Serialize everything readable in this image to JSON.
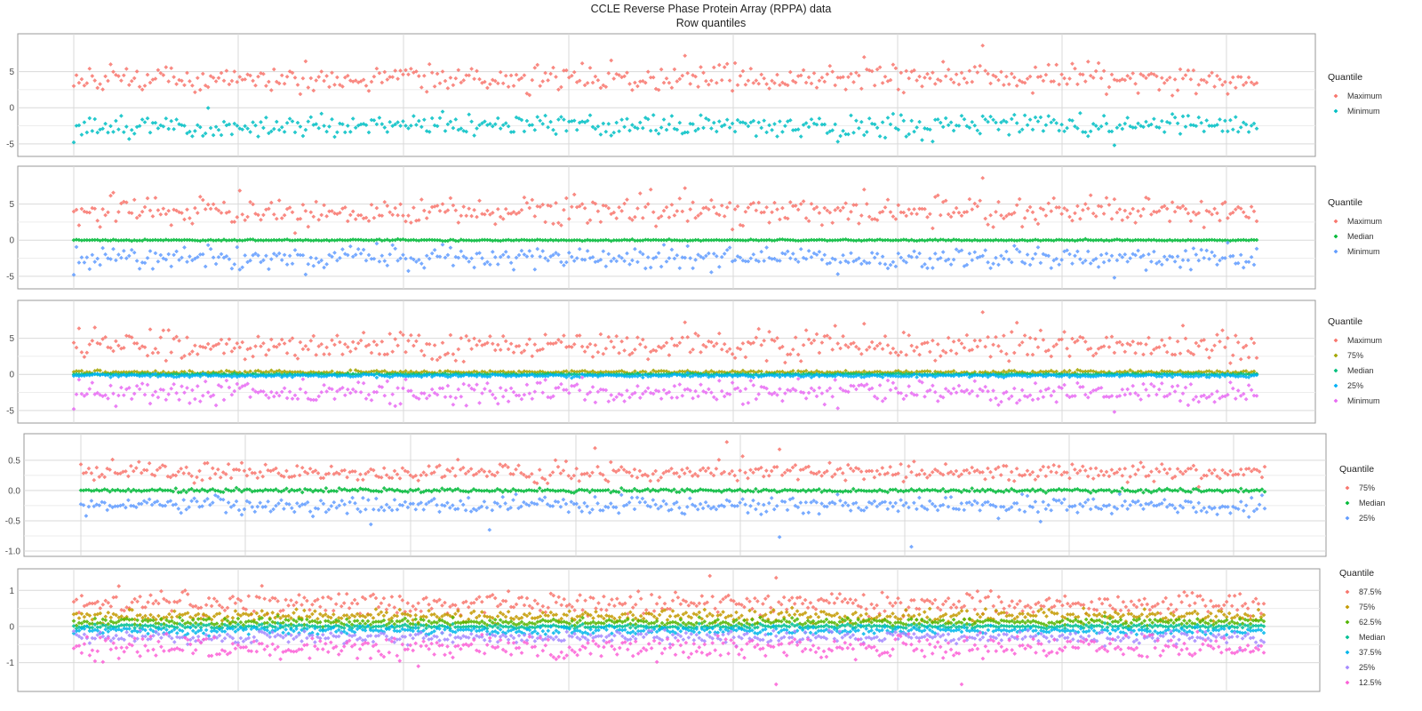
{
  "title": "CCLE Reverse Phase Protein Array (RPPA) data",
  "subtitle": "Row quantiles",
  "chart_data": [
    {
      "type": "scatter",
      "legend_title": "Quantile",
      "legend_position": "right",
      "grid": true,
      "ylim": [
        -6,
        9.5
      ],
      "yticks": [
        -5,
        0,
        5
      ],
      "ytick_labels": [
        "-5",
        "0",
        "5"
      ],
      "n_points": 450,
      "series": [
        {
          "name": "Maximum",
          "color": "#F8766D",
          "center": 4.0,
          "spread": 1.0,
          "outliers": [
            [
              345,
              8.6
            ],
            [
              232,
              7.2
            ],
            [
              300,
              7.0
            ]
          ]
        },
        {
          "name": "Minimum",
          "color": "#00BFC4",
          "center": -2.5,
          "spread": 0.75,
          "outliers": [
            [
              0,
              -4.8
            ],
            [
              395,
              -5.2
            ],
            [
              290,
              -4.7
            ]
          ]
        }
      ]
    },
    {
      "type": "scatter",
      "legend_title": "Quantile",
      "legend_position": "right",
      "grid": true,
      "ylim": [
        -6,
        9.5
      ],
      "yticks": [
        -5,
        0,
        5
      ],
      "ytick_labels": [
        "-5",
        "0",
        "5"
      ],
      "n_points": 450,
      "series": [
        {
          "name": "Maximum",
          "color": "#F8766D",
          "center": 4.0,
          "spread": 1.0,
          "outliers": [
            [
              345,
              8.6
            ],
            [
              232,
              7.2
            ],
            [
              300,
              7.0
            ]
          ]
        },
        {
          "name": "Median",
          "color": "#00BA38",
          "center": 0.0,
          "spread": 0.05,
          "outliers": []
        },
        {
          "name": "Minimum",
          "color": "#619CFF",
          "center": -2.5,
          "spread": 0.75,
          "outliers": [
            [
              0,
              -4.8
            ],
            [
              395,
              -5.2
            ],
            [
              290,
              -4.7
            ]
          ]
        }
      ]
    },
    {
      "type": "scatter",
      "legend_title": "Quantile",
      "legend_position": "right",
      "grid": true,
      "ylim": [
        -6,
        9.5
      ],
      "yticks": [
        -5,
        0,
        5
      ],
      "ytick_labels": [
        "-5",
        "0",
        "5"
      ],
      "n_points": 450,
      "series": [
        {
          "name": "Maximum",
          "color": "#F8766D",
          "center": 4.0,
          "spread": 1.0,
          "outliers": [
            [
              345,
              8.6
            ],
            [
              232,
              7.2
            ],
            [
              300,
              7.0
            ]
          ]
        },
        {
          "name": "75%",
          "color": "#A3A500",
          "center": 0.3,
          "spread": 0.12,
          "outliers": []
        },
        {
          "name": "Median",
          "color": "#00BF7D",
          "center": 0.0,
          "spread": 0.05,
          "outliers": []
        },
        {
          "name": "25%",
          "color": "#00B0F6",
          "center": -0.2,
          "spread": 0.1,
          "outliers": []
        },
        {
          "name": "Minimum",
          "color": "#E76BF3",
          "center": -2.5,
          "spread": 0.75,
          "outliers": [
            [
              0,
              -4.8
            ],
            [
              395,
              -5.2
            ],
            [
              290,
              -4.7
            ]
          ]
        }
      ]
    },
    {
      "type": "scatter",
      "legend_title": "Quantile",
      "legend_position": "right",
      "grid": true,
      "ylim": [
        -1.0,
        0.85
      ],
      "yticks": [
        -1.0,
        -0.5,
        0.0,
        0.5
      ],
      "ytick_labels": [
        "-1.0",
        "-0.5",
        "0.0",
        "0.5"
      ],
      "n_points": 450,
      "series": [
        {
          "name": "75%",
          "color": "#F8766D",
          "center": 0.3,
          "spread": 0.07,
          "outliers": [
            [
              245,
              0.8
            ],
            [
              265,
              0.68
            ],
            [
              195,
              0.7
            ]
          ]
        },
        {
          "name": "Median",
          "color": "#00BA38",
          "center": 0.0,
          "spread": 0.015,
          "outliers": []
        },
        {
          "name": "25%",
          "color": "#619CFF",
          "center": -0.25,
          "spread": 0.07,
          "outliers": [
            [
              315,
              -0.93
            ],
            [
              265,
              -0.77
            ],
            [
              155,
              -0.65
            ],
            [
              110,
              -0.56
            ]
          ]
        }
      ]
    },
    {
      "type": "scatter",
      "legend_title": "Quantile",
      "legend_position": "right",
      "grid": true,
      "ylim": [
        -1.65,
        1.45
      ],
      "yticks": [
        -1,
        0,
        1
      ],
      "ytick_labels": [
        "-1",
        "0",
        "1"
      ],
      "n_points": 450,
      "series": [
        {
          "name": "87.5%",
          "color": "#F8766D",
          "center": 0.65,
          "spread": 0.15,
          "outliers": [
            [
              240,
              1.4
            ],
            [
              265,
              1.35
            ]
          ]
        },
        {
          "name": "75%",
          "color": "#C49A00",
          "center": 0.3,
          "spread": 0.08,
          "outliers": []
        },
        {
          "name": "62.5%",
          "color": "#53B400",
          "center": 0.13,
          "spread": 0.05,
          "outliers": []
        },
        {
          "name": "Median",
          "color": "#00C094",
          "center": 0.0,
          "spread": 0.03,
          "outliers": []
        },
        {
          "name": "37.5%",
          "color": "#00B6EB",
          "center": -0.12,
          "spread": 0.05,
          "outliers": []
        },
        {
          "name": "25%",
          "color": "#A58AFF",
          "center": -0.3,
          "spread": 0.08,
          "outliers": []
        },
        {
          "name": "12.5%",
          "color": "#FB61D7",
          "center": -0.6,
          "spread": 0.15,
          "outliers": [
            [
              265,
              -1.6
            ],
            [
              335,
              -1.6
            ],
            [
              130,
              -1.1
            ]
          ]
        }
      ]
    }
  ]
}
